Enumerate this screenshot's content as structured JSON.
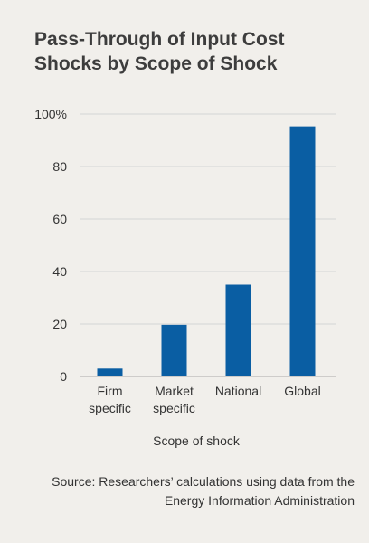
{
  "title": "Pass-Through of Input Cost Shocks by Scope of Shock",
  "source": "Source: Researchers’ calculations using data from the Energy Information Administration",
  "colors": {
    "bar": "#0a5ea3",
    "grid": "#d4d4d4",
    "background": "#f1efeb",
    "text": "#333333"
  },
  "chart_data": {
    "type": "bar",
    "title": "Pass-Through of Input Cost Shocks by Scope of Shock",
    "xlabel": "Scope of shock",
    "ylabel": "",
    "categories": [
      [
        "Firm",
        "specific"
      ],
      [
        "Market",
        "specific"
      ],
      [
        "National"
      ],
      [
        "Global"
      ]
    ],
    "values": [
      3,
      19.7,
      35,
      95.3
    ],
    "ylim": [
      0,
      100
    ],
    "yticks": [
      0,
      20,
      40,
      60,
      80,
      100
    ],
    "ytick_labels": [
      "0",
      "20",
      "40",
      "60",
      "80",
      "100%"
    ],
    "grid": true,
    "legend": "none"
  }
}
